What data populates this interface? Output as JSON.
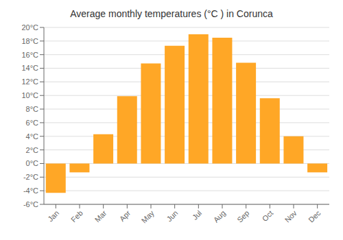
{
  "chart_data": {
    "type": "bar",
    "title": "Average monthly temperatures (°C ) in Corunca",
    "categories": [
      "Jan",
      "Feb",
      "Mar",
      "Apr",
      "May",
      "Jun",
      "Jul",
      "Aug",
      "Sep",
      "Oct",
      "Nov",
      "Dec"
    ],
    "values": [
      -4.3,
      -1.3,
      4.3,
      9.9,
      14.7,
      17.3,
      19.0,
      18.5,
      14.8,
      9.6,
      4.0,
      -1.3
    ],
    "color": "#FFA726",
    "ylim": [
      -6,
      20
    ],
    "yticks": [
      {
        "value": -6,
        "label": "-6°C"
      },
      {
        "value": -4,
        "label": "-4°C"
      },
      {
        "value": -2,
        "label": "-2°C"
      },
      {
        "value": 0,
        "label": "0°C"
      },
      {
        "value": 2,
        "label": "2°C"
      },
      {
        "value": 4,
        "label": "4°C"
      },
      {
        "value": 6,
        "label": "6°C"
      },
      {
        "value": 8,
        "label": "8°C"
      },
      {
        "value": 10,
        "label": "10°C"
      },
      {
        "value": 12,
        "label": "12°C"
      },
      {
        "value": 14,
        "label": "14°C"
      },
      {
        "value": 16,
        "label": "16°C"
      },
      {
        "value": 18,
        "label": "18°C"
      },
      {
        "value": 20,
        "label": "20°C"
      }
    ],
    "grid": true
  }
}
